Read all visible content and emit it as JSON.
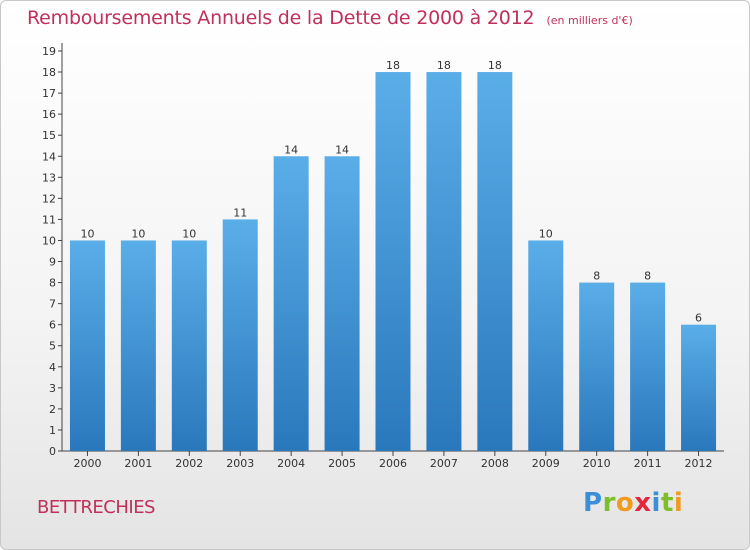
{
  "header": {
    "title": "Remboursements Annuels de la Dette de 2000 à 2012",
    "unit": "(en milliers d'€)"
  },
  "footer": {
    "commune": "BETTRECHIES",
    "logo_letters": [
      {
        "char": "P",
        "color": "#3a8fd8"
      },
      {
        "char": "r",
        "color": "#7cbf2a"
      },
      {
        "char": "o",
        "color": "#f29a1e"
      },
      {
        "char": "x",
        "color": "#e2263c"
      },
      {
        "char": "i",
        "color": "#3a8fd8"
      },
      {
        "char": "t",
        "color": "#7cbf2a"
      },
      {
        "char": "i",
        "color": "#f29a1e"
      }
    ]
  },
  "colors": {
    "accent": "#c0305a",
    "bar_top": "#5aaee8",
    "bar_bottom": "#2a78bc"
  },
  "chart_data": {
    "type": "bar",
    "title": "Remboursements Annuels de la Dette de 2000 à 2012",
    "subtitle": "(en milliers d'€)",
    "xlabel": "",
    "ylabel": "",
    "categories": [
      "2000",
      "2001",
      "2002",
      "2003",
      "2004",
      "2005",
      "2006",
      "2007",
      "2008",
      "2009",
      "2010",
      "2011",
      "2012"
    ],
    "values": [
      10,
      10,
      10,
      11,
      14,
      14,
      18,
      18,
      18,
      10,
      8,
      8,
      6
    ],
    "ylim": [
      0,
      19
    ],
    "yticks": [
      0,
      1,
      2,
      3,
      4,
      5,
      6,
      7,
      8,
      9,
      10,
      11,
      12,
      13,
      14,
      15,
      16,
      17,
      18,
      19
    ],
    "grid": false,
    "data_labels": true
  }
}
